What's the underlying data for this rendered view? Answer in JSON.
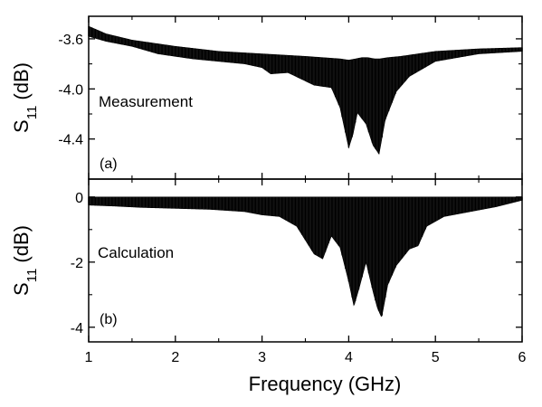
{
  "chart_data": [
    {
      "type": "line",
      "panel_label": "(a)",
      "annotation": "Measurement",
      "ylabel_main": "S",
      "ylabel_sub": "11",
      "ylabel_unit": " (dB)",
      "xlabel": "",
      "xlim": [
        1,
        6
      ],
      "ylim": [
        -4.72,
        -3.42
      ],
      "xticks": [
        1,
        2,
        3,
        4,
        5,
        6
      ],
      "yticks": [
        "-3.6",
        "-4.0",
        "-4.4"
      ],
      "ytick_values": [
        -3.6,
        -4.0,
        -4.4
      ],
      "grid": false,
      "ripple_count": 130,
      "series": [
        {
          "envelope_upper": {
            "x": [
              1.0,
              1.2,
              1.5,
              2.0,
              2.5,
              3.0,
              3.5,
              3.7,
              3.9,
              4.0,
              4.08,
              4.15,
              4.22,
              4.3,
              4.36,
              4.45,
              4.6,
              4.8,
              5.0,
              5.5,
              6.0
            ],
            "y": [
              -3.5,
              -3.56,
              -3.61,
              -3.66,
              -3.7,
              -3.72,
              -3.74,
              -3.75,
              -3.76,
              -3.77,
              -3.76,
              -3.75,
              -3.75,
              -3.76,
              -3.76,
              -3.75,
              -3.74,
              -3.72,
              -3.7,
              -3.68,
              -3.67
            ]
          },
          "envelope_lower": {
            "x": [
              1.0,
              1.2,
              1.5,
              1.8,
              2.0,
              2.2,
              2.5,
              2.8,
              3.0,
              3.1,
              3.3,
              3.6,
              3.8,
              3.9,
              4.0,
              4.05,
              4.1,
              4.2,
              4.28,
              4.35,
              4.42,
              4.55,
              4.7,
              4.8,
              5.0,
              5.5,
              6.0
            ],
            "y": [
              -3.58,
              -3.62,
              -3.66,
              -3.72,
              -3.74,
              -3.76,
              -3.78,
              -3.8,
              -3.83,
              -3.88,
              -3.87,
              -3.97,
              -3.99,
              -4.15,
              -4.47,
              -4.36,
              -4.19,
              -4.28,
              -4.45,
              -4.52,
              -4.25,
              -4.02,
              -3.9,
              -3.86,
              -3.78,
              -3.72,
              -3.7
            ]
          }
        }
      ]
    },
    {
      "type": "line",
      "panel_label": "(b)",
      "annotation": "Calculation",
      "ylabel_main": "S",
      "ylabel_sub": "11",
      "ylabel_unit": " (dB)",
      "xlabel": "Frequency (GHz)",
      "xlim": [
        1,
        6
      ],
      "ylim": [
        -4.45,
        0.55
      ],
      "xticks": [
        1,
        2,
        3,
        4,
        5,
        6
      ],
      "yticks": [
        "0",
        "-2",
        "-4"
      ],
      "ytick_values": [
        0,
        -2,
        -4
      ],
      "grid": false,
      "ripple_count": 130,
      "series": [
        {
          "envelope_upper": {
            "x": [
              1.0,
              2.0,
              3.0,
              4.0,
              5.0,
              6.0
            ],
            "y": [
              0,
              0,
              0,
              0,
              0,
              0
            ]
          },
          "envelope_lower": {
            "x": [
              1.0,
              1.3,
              1.6,
              2.0,
              2.4,
              2.8,
              3.0,
              3.2,
              3.4,
              3.6,
              3.7,
              3.8,
              3.9,
              4.0,
              4.06,
              4.12,
              4.2,
              4.28,
              4.33,
              4.38,
              4.45,
              4.55,
              4.7,
              4.8,
              4.9,
              5.1,
              5.4,
              5.7,
              6.0
            ],
            "y": [
              -0.25,
              -0.28,
              -0.32,
              -0.35,
              -0.38,
              -0.45,
              -0.55,
              -0.6,
              -0.9,
              -1.75,
              -1.9,
              -1.2,
              -1.55,
              -2.6,
              -3.35,
              -2.8,
              -2.0,
              -2.9,
              -3.4,
              -3.7,
              -2.7,
              -2.1,
              -1.6,
              -1.5,
              -0.9,
              -0.6,
              -0.45,
              -0.3,
              -0.1
            ]
          }
        }
      ]
    }
  ]
}
